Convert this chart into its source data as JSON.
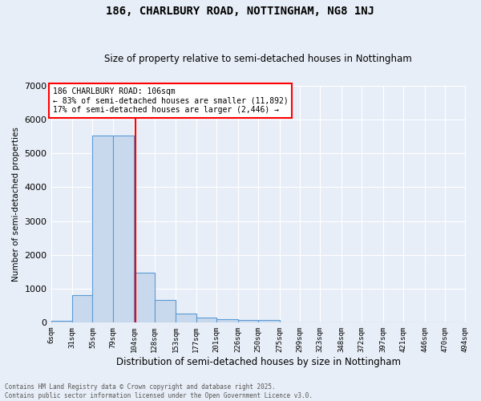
{
  "title": "186, CHARLBURY ROAD, NOTTINGHAM, NG8 1NJ",
  "subtitle": "Size of property relative to semi-detached houses in Nottingham",
  "xlabel": "Distribution of semi-detached houses by size in Nottingham",
  "ylabel": "Number of semi-detached properties",
  "bar_color": "#c9d9ed",
  "bar_edge_color": "#5b9bd5",
  "background_color": "#e8eef7",
  "grid_color": "#ffffff",
  "vline_x": 106,
  "vline_color": "red",
  "annotation_text": "186 CHARLBURY ROAD: 106sqm\n← 83% of semi-detached houses are smaller (11,892)\n17% of semi-detached houses are larger (2,446) →",
  "annotation_box_color": "white",
  "annotation_edge_color": "red",
  "footer_text": "Contains HM Land Registry data © Crown copyright and database right 2025.\nContains public sector information licensed under the Open Government Licence v3.0.",
  "bin_edges": [
    6,
    31,
    55,
    79,
    104,
    128,
    153,
    177,
    201,
    226,
    250,
    275,
    299,
    323,
    348,
    372,
    397,
    421,
    446,
    470,
    494
  ],
  "bar_heights": [
    55,
    800,
    5530,
    5530,
    1480,
    660,
    265,
    130,
    80,
    70,
    70,
    0,
    0,
    0,
    0,
    0,
    0,
    0,
    0,
    0
  ],
  "ylim": [
    0,
    7000
  ],
  "figsize": [
    6.0,
    5.0
  ],
  "dpi": 100
}
